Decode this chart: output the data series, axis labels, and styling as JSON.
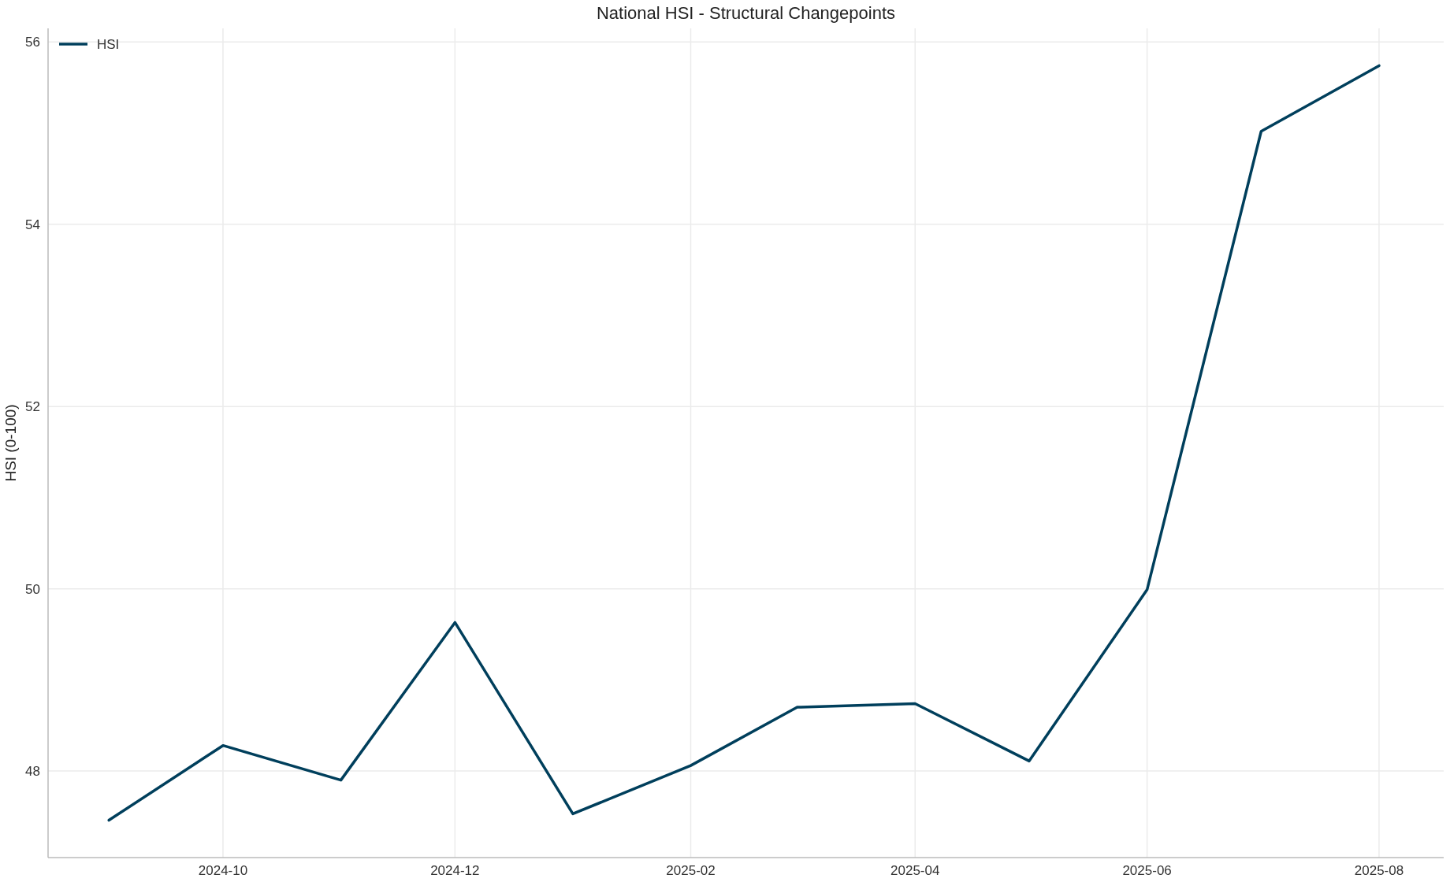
{
  "chart_data": {
    "type": "line",
    "title": "National HSI - Structural Changepoints",
    "ylabel": "HSI (0-100)",
    "x": [
      "2024-09",
      "2024-10",
      "2024-11",
      "2024-12",
      "2025-01",
      "2025-02",
      "2025-03",
      "2025-04",
      "2025-05",
      "2025-06",
      "2025-07",
      "2025-08"
    ],
    "series": [
      {
        "name": "HSI",
        "color": "#003f5c",
        "values": [
          47.46,
          48.28,
          47.9,
          49.63,
          47.53,
          48.06,
          48.7,
          48.74,
          48.11,
          49.99,
          55.02,
          55.74
        ]
      }
    ],
    "xlim": [
      "2024-08-16",
      "2025-08-18"
    ],
    "xticks": [
      "2024-10",
      "2024-12",
      "2025-02",
      "2025-04",
      "2025-06",
      "2025-08"
    ],
    "ylim": [
      47.05,
      56.15
    ],
    "yticks": [
      48,
      50,
      52,
      54,
      56
    ],
    "grid": true,
    "legend": "top left",
    "marker": "none",
    "line_style": "solid"
  }
}
